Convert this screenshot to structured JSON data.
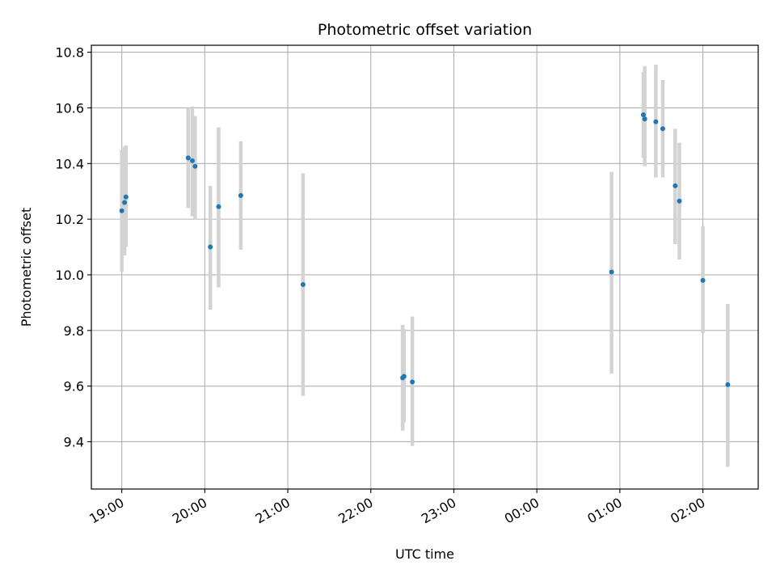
{
  "chart_data": {
    "type": "scatter",
    "title": "Photometric offset variation",
    "xlabel": "UTC time",
    "ylabel": "Photometric offset",
    "x_axis_kind": "time",
    "x_reference_date": "2000-01-01",
    "xlim": [
      "2000-01-01T18:38",
      "2000-01-02T02:40"
    ],
    "ylim": [
      9.23,
      10.825
    ],
    "x_ticks": [
      {
        "t": "2000-01-01T19:00",
        "label": "19:00"
      },
      {
        "t": "2000-01-01T20:00",
        "label": "20:00"
      },
      {
        "t": "2000-01-01T21:00",
        "label": "21:00"
      },
      {
        "t": "2000-01-01T22:00",
        "label": "22:00"
      },
      {
        "t": "2000-01-01T23:00",
        "label": "23:00"
      },
      {
        "t": "2000-01-02T00:00",
        "label": "00:00"
      },
      {
        "t": "2000-01-02T01:00",
        "label": "01:00"
      },
      {
        "t": "2000-01-02T02:00",
        "label": "02:00"
      }
    ],
    "y_ticks": [
      {
        "v": 9.4,
        "label": "9.4"
      },
      {
        "v": 9.6,
        "label": "9.6"
      },
      {
        "v": 9.8,
        "label": "9.8"
      },
      {
        "v": 10.0,
        "label": "10.0"
      },
      {
        "v": 10.2,
        "label": "10.2"
      },
      {
        "v": 10.4,
        "label": "10.4"
      },
      {
        "v": 10.6,
        "label": "10.6"
      },
      {
        "v": 10.8,
        "label": "10.8"
      }
    ],
    "grid": true,
    "marker_color": "#1f77b4",
    "errorbar_color": "#d3d3d3",
    "points": [
      {
        "t": "2000-01-01T19:00",
        "y": 10.23,
        "ylo": 10.01,
        "yhi": 10.45
      },
      {
        "t": "2000-01-01T19:02",
        "y": 10.26,
        "ylo": 10.07,
        "yhi": 10.46
      },
      {
        "t": "2000-01-01T19:03",
        "y": 10.28,
        "ylo": 10.1,
        "yhi": 10.465
      },
      {
        "t": "2000-01-01T19:48",
        "y": 10.42,
        "ylo": 10.24,
        "yhi": 10.6
      },
      {
        "t": "2000-01-01T19:51",
        "y": 10.41,
        "ylo": 10.21,
        "yhi": 10.605
      },
      {
        "t": "2000-01-01T19:53",
        "y": 10.39,
        "ylo": 10.2,
        "yhi": 10.57
      },
      {
        "t": "2000-01-01T20:04",
        "y": 10.1,
        "ylo": 9.875,
        "yhi": 10.32
      },
      {
        "t": "2000-01-01T20:10",
        "y": 10.245,
        "ylo": 9.955,
        "yhi": 10.53
      },
      {
        "t": "2000-01-01T20:26",
        "y": 10.285,
        "ylo": 10.09,
        "yhi": 10.48
      },
      {
        "t": "2000-01-01T21:11",
        "y": 9.965,
        "ylo": 9.565,
        "yhi": 10.365
      },
      {
        "t": "2000-01-01T22:23",
        "y": 9.63,
        "ylo": 9.44,
        "yhi": 9.82
      },
      {
        "t": "2000-01-01T22:24",
        "y": 9.635,
        "ylo": 9.47,
        "yhi": 9.805
      },
      {
        "t": "2000-01-01T22:30",
        "y": 9.615,
        "ylo": 9.385,
        "yhi": 9.85
      },
      {
        "t": "2000-01-02T00:54",
        "y": 10.01,
        "ylo": 9.645,
        "yhi": 10.37
      },
      {
        "t": "2000-01-02T01:17",
        "y": 10.575,
        "ylo": 10.42,
        "yhi": 10.73
      },
      {
        "t": "2000-01-02T01:18",
        "y": 10.56,
        "ylo": 10.39,
        "yhi": 10.75
      },
      {
        "t": "2000-01-02T01:26",
        "y": 10.55,
        "ylo": 10.35,
        "yhi": 10.755
      },
      {
        "t": "2000-01-02T01:31",
        "y": 10.525,
        "ylo": 10.35,
        "yhi": 10.7
      },
      {
        "t": "2000-01-02T01:40",
        "y": 10.32,
        "ylo": 10.11,
        "yhi": 10.525
      },
      {
        "t": "2000-01-02T01:43",
        "y": 10.265,
        "ylo": 10.055,
        "yhi": 10.475
      },
      {
        "t": "2000-01-02T02:00",
        "y": 9.98,
        "ylo": 9.79,
        "yhi": 10.175
      },
      {
        "t": "2000-01-02T02:18",
        "y": 9.605,
        "ylo": 9.31,
        "yhi": 9.895
      }
    ]
  }
}
